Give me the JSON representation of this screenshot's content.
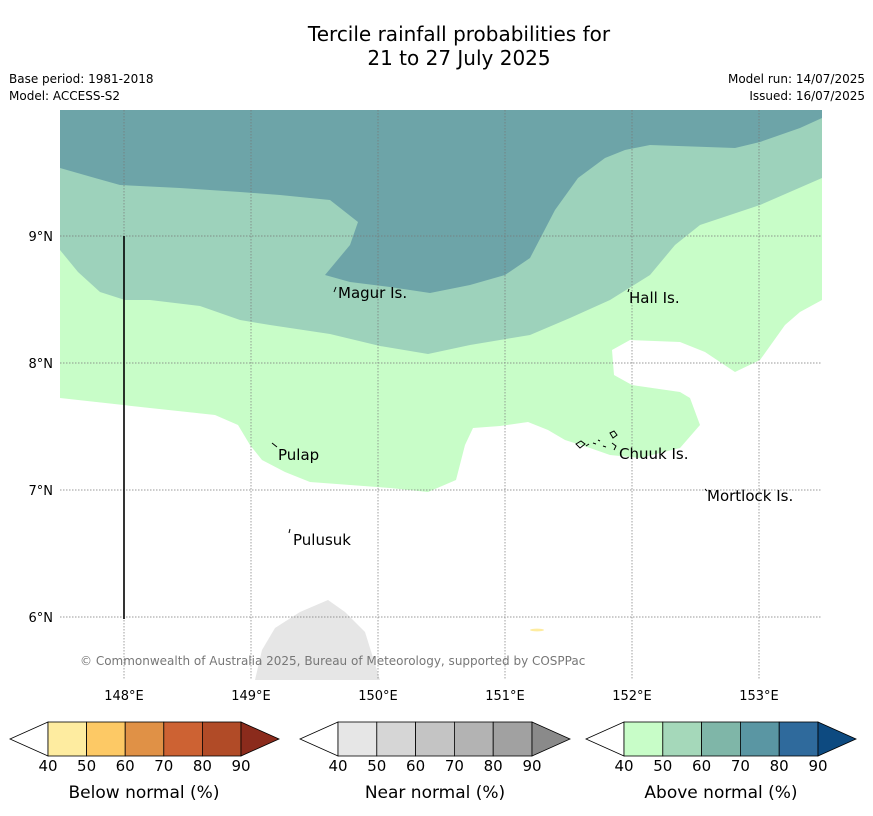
{
  "title": {
    "line1": "Tercile rainfall probabilities for",
    "line2": "21 to 27 July 2025"
  },
  "meta": {
    "base_period": "Base period: 1981-2018",
    "model": "Model: ACCESS-S2",
    "model_run": "Model run: 14/07/2025",
    "issued": "Issued: 16/07/2025"
  },
  "map": {
    "lat_labels": [
      "9°N",
      "8°N",
      "7°N",
      "6°N"
    ],
    "lon_labels": [
      "148°E",
      "149°E",
      "150°E",
      "151°E",
      "152°E",
      "153°E"
    ],
    "places": [
      "Magur Is.",
      "Hall Is.",
      "Pulap",
      "Chuuk Is.",
      "Mortlock Is.",
      "Pulusuk"
    ],
    "copyright": "© Commonwealth of Australia 2025, Bureau of Meteorology, supported by COSPPac"
  },
  "legends": {
    "below": {
      "label": "Below normal (%)",
      "ticks": [
        "40",
        "50",
        "60",
        "70",
        "80",
        "90"
      ],
      "colors": [
        "#ffffff",
        "#feeca0",
        "#fdc965",
        "#e09146",
        "#cd6233",
        "#b14b27",
        "#8b2b1c"
      ]
    },
    "near": {
      "label": "Near normal (%)",
      "ticks": [
        "40",
        "50",
        "60",
        "70",
        "80",
        "90"
      ],
      "colors": [
        "#ffffff",
        "#e6e6e6",
        "#d6d6d6",
        "#c4c4c4",
        "#b3b3b3",
        "#a1a1a1",
        "#8a8a8a"
      ]
    },
    "above": {
      "label": "Above normal (%)",
      "ticks": [
        "40",
        "50",
        "60",
        "70",
        "80",
        "90"
      ],
      "colors": [
        "#ffffff",
        "#c8fdc8",
        "#a5d8ba",
        "#7fb6a8",
        "#5a96a3",
        "#2f6a9c",
        "#0d4a80"
      ]
    }
  }
}
